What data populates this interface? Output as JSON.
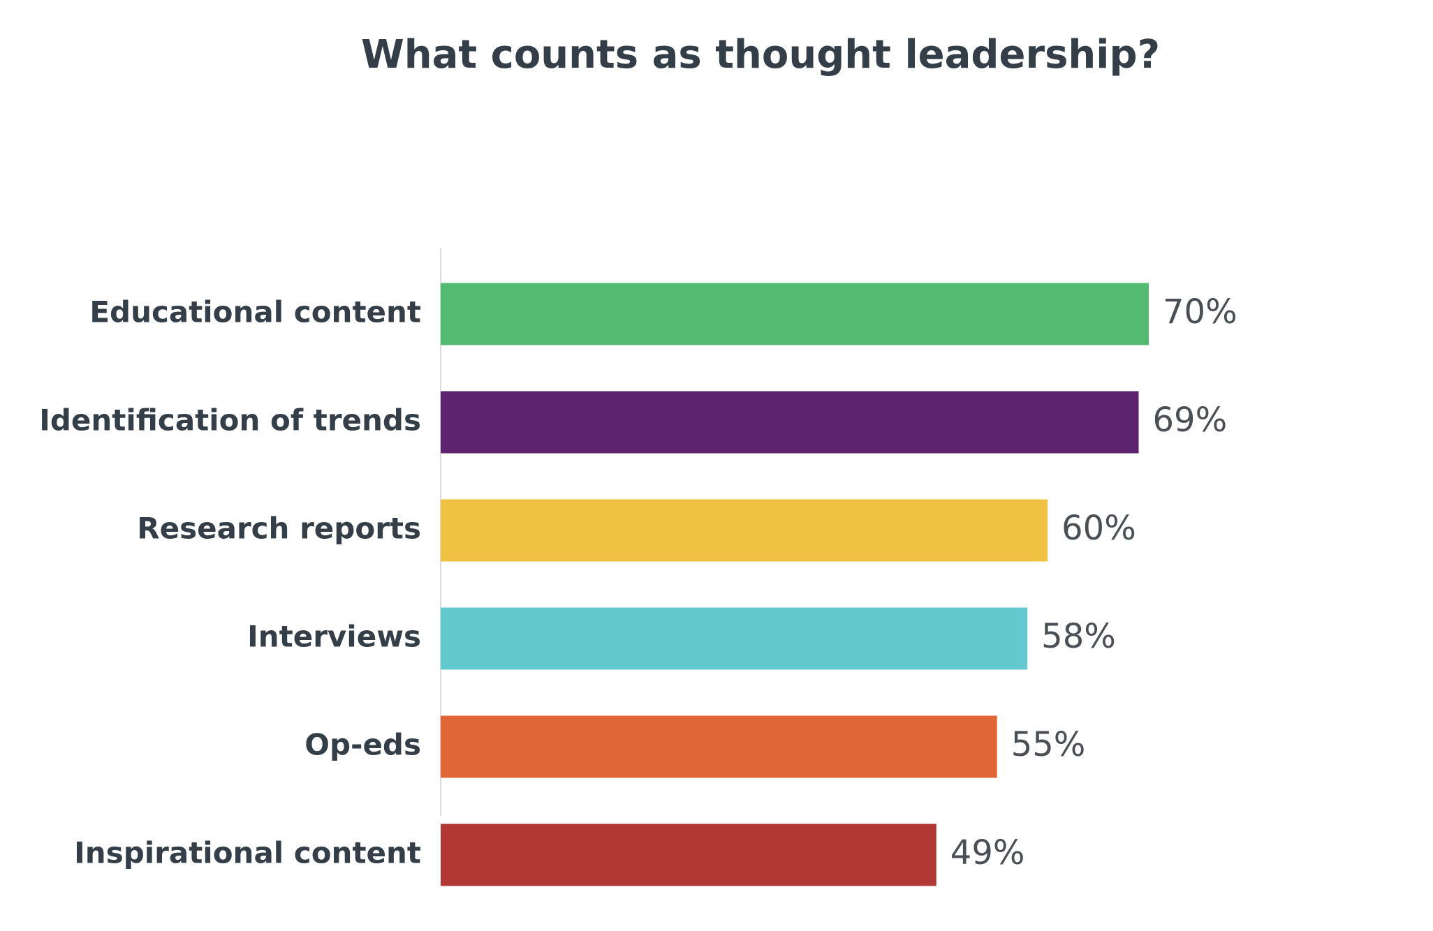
{
  "chart_data": {
    "type": "hbar",
    "title": "What counts as thought leadership?",
    "categories": [
      "Educational content",
      "Identification of trends",
      "Research reports",
      "Interviews",
      "Op-eds",
      "Inspirational content"
    ],
    "values": [
      70,
      69,
      60,
      58,
      55,
      49
    ],
    "value_labels": [
      "70%",
      "69%",
      "60%",
      "58%",
      "55%",
      "49%"
    ],
    "colors": [
      "#53ba72",
      "#5c246e",
      "#f0c143",
      "#64c9cf",
      "#e06638",
      "#b23835"
    ],
    "xlim": [
      0,
      70
    ]
  }
}
